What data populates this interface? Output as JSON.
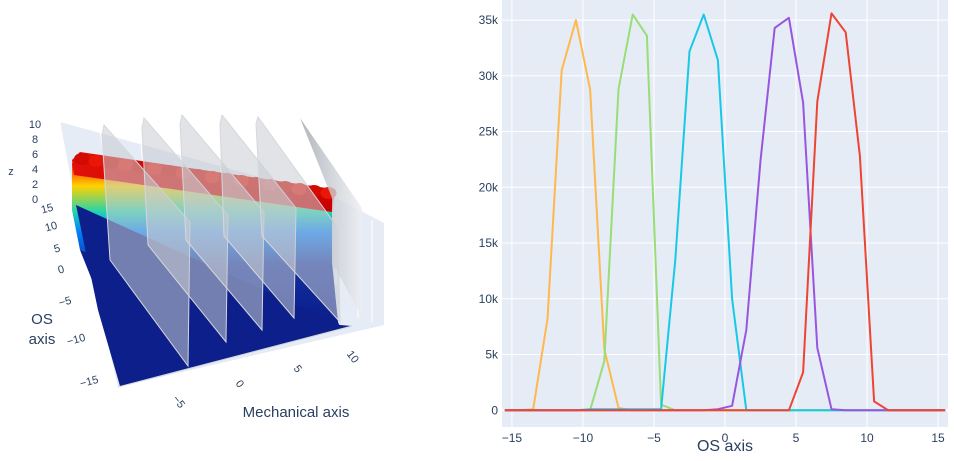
{
  "chart_data": [
    {
      "type": "surface",
      "xlabel": "Mechanical axis",
      "ylabel": "OS axis",
      "zlabel": "z",
      "x_ticks": [
        "−5",
        "0",
        "5",
        "10"
      ],
      "y_ticks": [
        "−15",
        "−10",
        "−5",
        "0",
        "5",
        "10",
        "15"
      ],
      "z_ticks": [
        "0",
        "2",
        "4",
        "6",
        "8",
        "10"
      ],
      "xlim": [
        -9,
        12
      ],
      "ylim": [
        -17,
        17
      ],
      "zlim": [
        0,
        10
      ],
      "ridge_height": 6.5,
      "slices_x": [
        -7.5,
        -3.5,
        1,
        5.5,
        10
      ],
      "colorscale": "jet",
      "grid": true
    },
    {
      "type": "line",
      "title": "",
      "xlabel": "OS axis",
      "ylabel": "",
      "xlim": [
        -15.7,
        15.7
      ],
      "ylim": [
        -1500,
        36800
      ],
      "x_ticks": [
        "−15",
        "−10",
        "−5",
        "0",
        "5",
        "10",
        "15"
      ],
      "y_ticks": [
        "0",
        "5k",
        "10k",
        "15k",
        "20k",
        "25k",
        "30k",
        "35k"
      ],
      "grid": true,
      "x": [
        -15.5,
        -14.5,
        -13.5,
        -12.5,
        -11.5,
        -10.5,
        -9.5,
        -8.5,
        -7.5,
        -6.5,
        -5.5,
        -4.5,
        -3.5,
        -2.5,
        -1.5,
        -0.5,
        0.5,
        1.5,
        2.5,
        3.5,
        4.5,
        5.5,
        6.5,
        7.5,
        8.5,
        9.5,
        10.5,
        11.5,
        12.5,
        13.5,
        14.5,
        15.5
      ],
      "series": [
        {
          "color": "#FFB84D",
          "values": [
            0,
            0,
            100,
            8200,
            30500,
            35000,
            28800,
            5500,
            200,
            0,
            0,
            0,
            0,
            0,
            0,
            0,
            0,
            0,
            0,
            0,
            0,
            0,
            0,
            0,
            0,
            0,
            0,
            0,
            0,
            0,
            0,
            0
          ]
        },
        {
          "color": "#99DD77",
          "values": [
            0,
            0,
            0,
            0,
            0,
            0,
            0,
            4400,
            28800,
            35500,
            33600,
            500,
            0,
            0,
            0,
            0,
            0,
            0,
            0,
            0,
            0,
            0,
            0,
            0,
            0,
            0,
            0,
            0,
            0,
            0,
            0,
            0
          ]
        },
        {
          "color": "#19C8E6",
          "values": [
            0,
            0,
            0,
            0,
            0,
            0,
            100,
            100,
            100,
            100,
            100,
            100,
            13500,
            32200,
            35500,
            31400,
            10000,
            0,
            0,
            0,
            0,
            0,
            0,
            0,
            0,
            0,
            0,
            0,
            0,
            0,
            0,
            0
          ]
        },
        {
          "color": "#9955E0",
          "values": [
            0,
            0,
            0,
            0,
            0,
            0,
            0,
            0,
            0,
            0,
            0,
            0,
            0,
            0,
            0,
            100,
            400,
            7200,
            22400,
            34300,
            35200,
            27600,
            5600,
            100,
            0,
            0,
            0,
            0,
            0,
            0,
            0,
            0
          ]
        },
        {
          "color": "#EE4433",
          "values": [
            0,
            0,
            0,
            0,
            0,
            0,
            0,
            0,
            0,
            0,
            0,
            0,
            0,
            0,
            0,
            0,
            0,
            0,
            0,
            0,
            0,
            3400,
            27700,
            35600,
            33900,
            22800,
            800,
            0,
            0,
            0,
            0,
            0
          ]
        }
      ]
    }
  ]
}
